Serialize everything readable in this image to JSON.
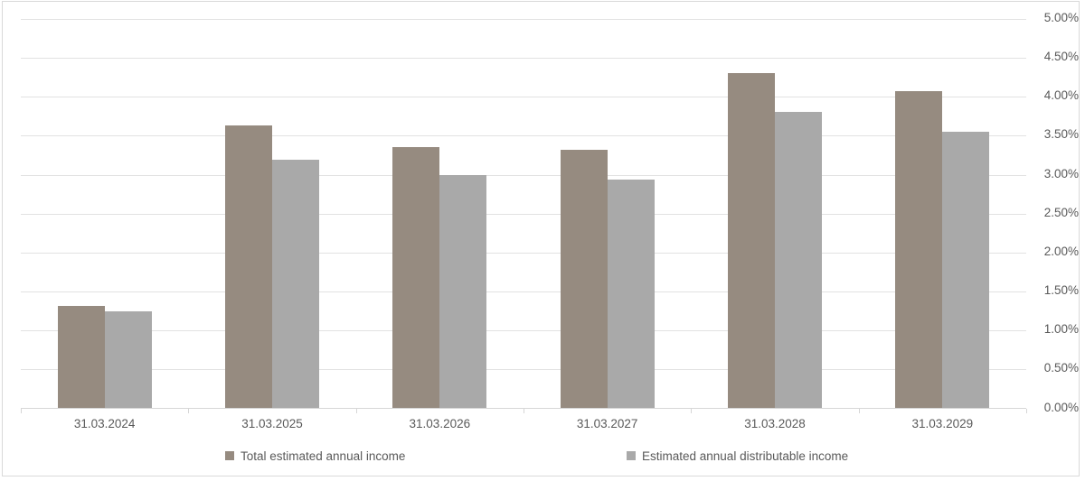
{
  "chart_data": {
    "type": "bar",
    "title": "",
    "xlabel": "",
    "ylabel": "",
    "categories": [
      "31.03.2024",
      "31.03.2025",
      "31.03.2026",
      "31.03.2027",
      "31.03.2028",
      "31.03.2029"
    ],
    "series": [
      {
        "name": "Total estimated annual income",
        "color": "#968b80",
        "values": [
          1.31,
          3.63,
          3.35,
          3.32,
          4.3,
          4.07
        ]
      },
      {
        "name": "Estimated annual distributable income",
        "color": "#a9a9a9",
        "values": [
          1.25,
          3.19,
          2.99,
          2.94,
          3.81,
          3.55
        ]
      }
    ],
    "ylim": [
      0,
      5
    ],
    "ytick_step": 0.5,
    "ytick_labels": [
      "5.00%",
      "4.50%",
      "4.00%",
      "3.50%",
      "3.00%",
      "2.50%",
      "2.00%",
      "1.50%",
      "1.00%",
      "0.50%",
      "0.00%"
    ],
    "axis_side": "right",
    "grid": true,
    "legend_position": "bottom"
  },
  "style": {
    "gridline_color": "#e2e2e2",
    "axis_line_color": "#d6d6d6",
    "frame_border_color": "#d9d9d9",
    "text_color": "#595959",
    "background": "#ffffff"
  }
}
